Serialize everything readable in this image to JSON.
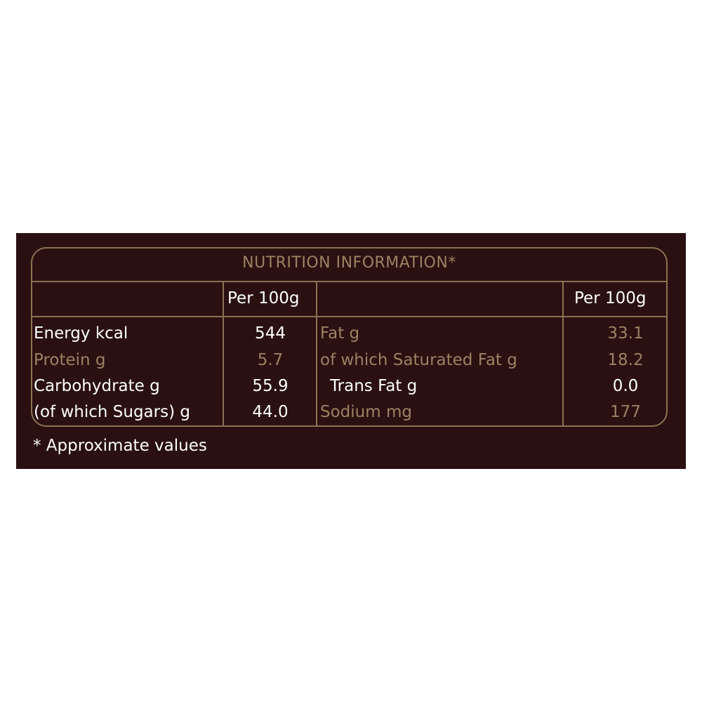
{
  "title": "NUTRITION INFORMATION*",
  "header": {
    "left_per": "Per 100g",
    "right_per": "Per 100g"
  },
  "left_rows": [
    {
      "label": "Energy kcal",
      "value": "544",
      "highlight": true
    },
    {
      "label": "Protein g",
      "value": "5.7",
      "highlight": false
    },
    {
      "label": "Carbohydrate g",
      "value": "55.9",
      "highlight": true
    },
    {
      "label": "(of which Sugars) g",
      "value": "44.0",
      "highlight": true
    }
  ],
  "right_rows": [
    {
      "label": "Fat g",
      "value": "33.1",
      "highlight": false
    },
    {
      "label": "of which Saturated Fat g",
      "value": "18.2",
      "highlight": false
    },
    {
      "label": "Trans Fat g",
      "value": "0.0",
      "highlight": true
    },
    {
      "label": "Sodium mg",
      "value": "177",
      "highlight": false
    }
  ],
  "footnote": "* Approximate values",
  "colors": {
    "background": "#2a1011",
    "gold": "#9a8262",
    "text": "#ffffff"
  }
}
